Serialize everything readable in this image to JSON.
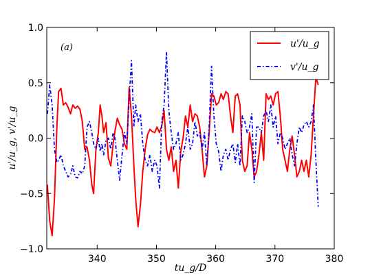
{
  "chart_data": {
    "type": "line",
    "panel_label": "(a)",
    "xlabel": "tu_g/D",
    "ylabel": "u'/u_g, v'/u_g",
    "xlim": [
      331.5,
      380
    ],
    "ylim": [
      -1.0,
      1.0
    ],
    "xticks": [
      340,
      350,
      360,
      370,
      380
    ],
    "xtick_labels": [
      "340",
      "350",
      "360",
      "370",
      "380"
    ],
    "yticks": [
      -1.0,
      -0.5,
      0.0,
      0.5,
      1.0
    ],
    "ytick_labels": [
      "−1.0",
      "−0.5",
      "0.0",
      "0.5",
      "1.0"
    ],
    "grid": false,
    "legend_position": "top-right",
    "series": [
      {
        "name": "u'/u_g",
        "color": "#ff0000",
        "style": "solid",
        "x": [
          331.6,
          332.0,
          332.4,
          332.8,
          333.2,
          333.5,
          333.9,
          334.3,
          334.7,
          335.1,
          335.5,
          335.9,
          336.3,
          336.7,
          337.1,
          337.5,
          337.9,
          338.3,
          338.7,
          339.1,
          339.4,
          339.8,
          340.2,
          340.5,
          340.8,
          341.1,
          341.5,
          341.9,
          342.3,
          342.7,
          343.0,
          343.4,
          343.8,
          344.2,
          344.6,
          345.0,
          345.4,
          345.8,
          346.2,
          346.5,
          346.9,
          347.3,
          347.7,
          348.1,
          348.5,
          348.9,
          349.3,
          349.7,
          350.1,
          350.5,
          350.9,
          351.3,
          351.7,
          352.1,
          352.5,
          352.9,
          353.3,
          353.7,
          354.1,
          354.5,
          354.9,
          355.3,
          355.7,
          356.1,
          356.5,
          356.9,
          357.3,
          357.7,
          358.1,
          358.5,
          358.9,
          359.3,
          359.7,
          360.1,
          360.5,
          360.9,
          361.3,
          361.7,
          362.1,
          362.5,
          362.9,
          363.3,
          363.7,
          364.1,
          364.5,
          364.9,
          365.3,
          365.7,
          366.1,
          366.5,
          366.9,
          367.3,
          367.7,
          368.1,
          368.5,
          368.9,
          369.3,
          369.7,
          370.1,
          370.5,
          370.9,
          371.3,
          371.7,
          372.1,
          372.5,
          372.9,
          373.3,
          373.7,
          374.1,
          374.5,
          374.9,
          375.3,
          375.7,
          376.1,
          376.5,
          376.9,
          377.3
        ],
        "y": [
          -0.42,
          -0.75,
          -0.88,
          -0.55,
          0.1,
          0.42,
          0.45,
          0.3,
          0.32,
          0.28,
          0.22,
          0.3,
          0.27,
          0.29,
          0.26,
          0.15,
          -0.1,
          -0.08,
          -0.2,
          -0.42,
          -0.5,
          -0.1,
          0.05,
          0.3,
          0.2,
          0.05,
          0.14,
          -0.18,
          -0.25,
          -0.05,
          0.06,
          0.18,
          0.12,
          0.08,
          -0.05,
          -0.1,
          0.46,
          0.2,
          -0.25,
          -0.55,
          -0.8,
          -0.6,
          -0.3,
          -0.1,
          0.03,
          0.08,
          0.06,
          0.05,
          0.1,
          0.05,
          0.11,
          0.25,
          -0.1,
          -0.2,
          -0.08,
          -0.3,
          -0.2,
          -0.45,
          -0.12,
          0.0,
          0.2,
          0.1,
          0.3,
          0.15,
          0.22,
          0.2,
          0.1,
          -0.1,
          -0.35,
          -0.25,
          0.05,
          0.4,
          0.38,
          0.3,
          0.32,
          0.4,
          0.35,
          0.42,
          0.4,
          0.2,
          0.05,
          0.38,
          0.4,
          0.3,
          -0.2,
          -0.3,
          -0.25,
          0.05,
          -0.1,
          -0.35,
          -0.3,
          -0.15,
          0.05,
          -0.2,
          0.4,
          0.35,
          0.38,
          0.3,
          0.4,
          0.42,
          0.2,
          -0.1,
          -0.2,
          -0.3,
          -0.1,
          0.02,
          -0.15,
          -0.35,
          -0.3,
          -0.2,
          -0.3,
          -0.2,
          -0.35,
          -0.15,
          0.2,
          0.55,
          0.48
        ]
      },
      {
        "name": "v'/u_g",
        "color": "#0000ff",
        "style": "dashdot",
        "x": [
          331.6,
          332.0,
          332.4,
          332.8,
          333.2,
          333.5,
          333.9,
          334.3,
          334.7,
          335.1,
          335.5,
          335.9,
          336.3,
          336.7,
          337.1,
          337.5,
          337.9,
          338.3,
          338.7,
          339.1,
          339.4,
          339.8,
          340.2,
          340.5,
          340.8,
          341.1,
          341.5,
          341.9,
          342.3,
          342.7,
          343.0,
          343.4,
          343.8,
          344.2,
          344.6,
          345.0,
          345.4,
          345.8,
          346.2,
          346.5,
          346.9,
          347.3,
          347.7,
          348.1,
          348.5,
          348.9,
          349.3,
          349.7,
          350.1,
          350.5,
          350.9,
          351.3,
          351.7,
          352.1,
          352.5,
          352.9,
          353.3,
          353.7,
          354.1,
          354.5,
          354.9,
          355.3,
          355.7,
          356.1,
          356.5,
          356.9,
          357.3,
          357.7,
          358.1,
          358.5,
          358.9,
          359.3,
          359.7,
          360.1,
          360.5,
          360.9,
          361.3,
          361.7,
          362.1,
          362.5,
          362.9,
          363.3,
          363.7,
          364.1,
          364.5,
          364.9,
          365.3,
          365.7,
          366.1,
          366.5,
          366.9,
          367.3,
          367.7,
          368.1,
          368.5,
          368.9,
          369.3,
          369.7,
          370.1,
          370.5,
          370.9,
          371.3,
          371.7,
          372.1,
          372.5,
          372.9,
          373.3,
          373.7,
          374.1,
          374.5,
          374.9,
          375.3,
          375.7,
          376.1,
          376.5,
          376.9,
          377.3
        ],
        "y": [
          0.22,
          0.48,
          0.3,
          -0.1,
          -0.22,
          -0.2,
          -0.15,
          -0.25,
          -0.3,
          -0.35,
          -0.33,
          -0.25,
          -0.35,
          -0.36,
          -0.3,
          -0.32,
          -0.25,
          0.1,
          0.15,
          0.05,
          -0.05,
          -0.1,
          0.0,
          -0.12,
          -0.05,
          -0.15,
          -0.02,
          0.0,
          -0.1,
          0.05,
          0.0,
          -0.2,
          -0.38,
          -0.15,
          0.05,
          -0.05,
          0.35,
          0.7,
          0.1,
          0.3,
          0.15,
          0.22,
          -0.05,
          -0.2,
          -0.25,
          -0.15,
          -0.3,
          -0.2,
          -0.25,
          -0.45,
          0.15,
          0.3,
          0.78,
          0.25,
          0.05,
          -0.1,
          -0.05,
          0.05,
          -0.2,
          -0.15,
          -0.05,
          0.1,
          -0.1,
          -0.05,
          0.15,
          0.02,
          0.05,
          -0.1,
          0.05,
          -0.25,
          0.1,
          0.65,
          0.2,
          -0.05,
          -0.12,
          -0.3,
          -0.15,
          -0.1,
          -0.2,
          -0.1,
          -0.05,
          -0.22,
          -0.05,
          -0.25,
          0.2,
          0.15,
          0.05,
          0.1,
          0.22,
          -0.4,
          0.1,
          0.1,
          0.05,
          0.2,
          0.25,
          0.15,
          0.3,
          0.1,
          0.2,
          -0.05,
          0.05,
          0.0,
          -0.1,
          -0.05,
          0.0,
          -0.15,
          -0.25,
          -0.05,
          0.1,
          0.05,
          0.12,
          0.15,
          0.1,
          0.15,
          0.3,
          -0.2,
          -0.62
        ]
      }
    ]
  }
}
